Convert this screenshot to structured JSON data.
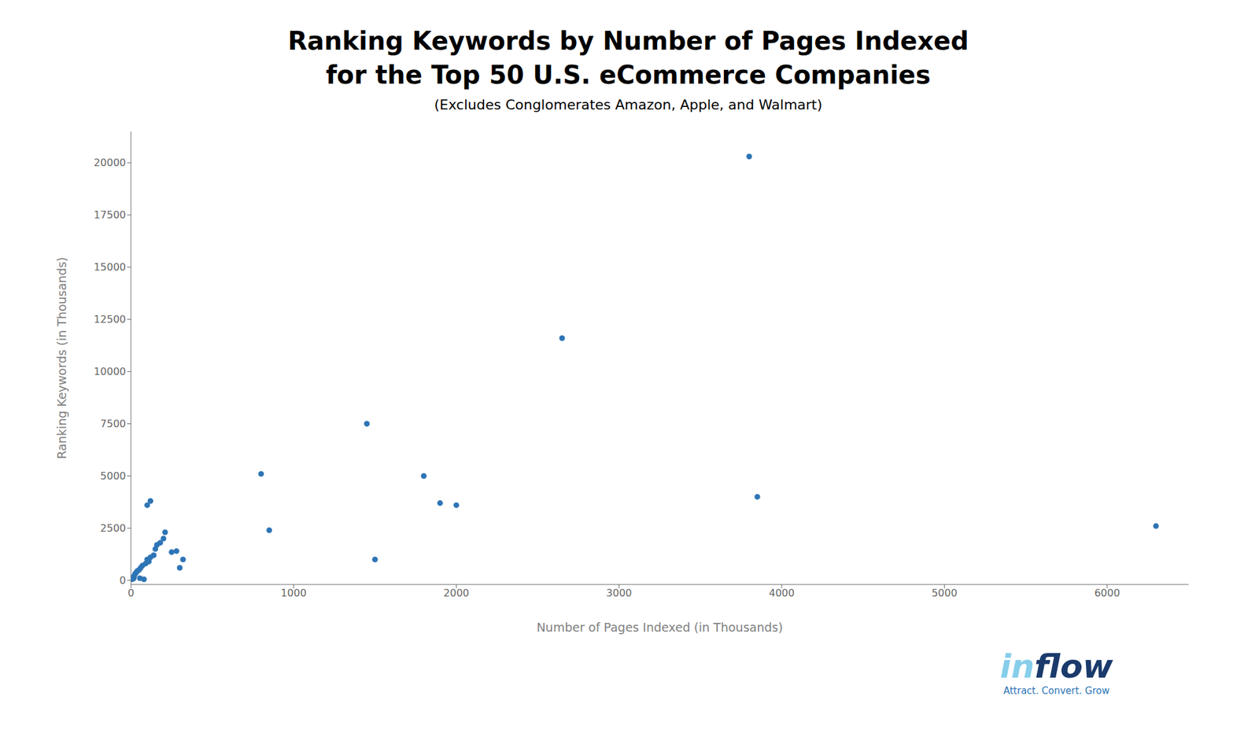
{
  "chart_data": {
    "type": "scatter",
    "title": [
      "Ranking Keywords by Number of Pages Indexed",
      "for the Top 50 U.S. eCommerce Companies"
    ],
    "subtitle": "(Excludes Conglomerates Amazon, Apple, and Walmart)",
    "x_label": "Number of Pages Indexed (in Thousands)",
    "y_label": "Ranking Keywords (in Thousands)",
    "color": "#2e75b6",
    "grid": false,
    "xlim": [
      0,
      6500
    ],
    "ylim": [
      -200,
      21500
    ],
    "xticks": [
      0,
      1000,
      2000,
      3000,
      4000,
      5000,
      6000
    ],
    "yticks": [
      0,
      2500,
      5000,
      7500,
      10000,
      12500,
      15000,
      17500,
      20000
    ],
    "x": [
      5,
      8,
      12,
      15,
      18,
      20,
      25,
      30,
      35,
      40,
      50,
      55,
      60,
      70,
      80,
      90,
      100,
      110,
      120,
      140,
      150,
      160,
      180,
      200,
      210,
      250,
      280,
      300,
      320,
      100,
      120,
      800,
      850,
      1450,
      1500,
      1800,
      1900,
      2000,
      2650,
      3800,
      3850,
      6300
    ],
    "values": [
      50,
      100,
      150,
      80,
      120,
      200,
      300,
      350,
      400,
      450,
      500,
      100,
      600,
      700,
      50,
      800,
      1000,
      900,
      1100,
      1200,
      1500,
      1700,
      1800,
      2000,
      2300,
      1350,
      1400,
      600,
      1000,
      3600,
      3800,
      5100,
      2400,
      7500,
      1000,
      5000,
      3700,
      3600,
      11600,
      20300,
      4000,
      2600
    ],
    "annotations": [
      {
        "text": "in",
        "color": "#87ceeb"
      },
      {
        "text": "flow",
        "color": "#1a3a6b"
      },
      {
        "text": "Attract. Convert. Grow",
        "color": "#2e75b6"
      }
    ]
  }
}
